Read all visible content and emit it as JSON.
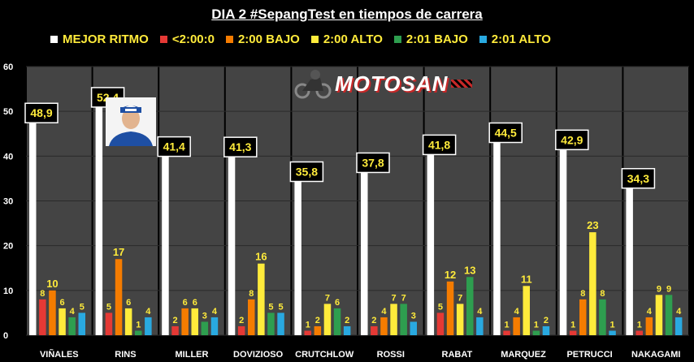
{
  "chart_data": {
    "type": "bar",
    "title": "DIA 2 #SepangTest en tiempos de carrera",
    "ylim": [
      0,
      60
    ],
    "yticks": [
      0,
      10,
      20,
      30,
      40,
      50,
      60
    ],
    "legend_placement": "top",
    "categories": [
      "VIÑALES",
      "RINS",
      "MILLER",
      "DOVIZIOSO",
      "CRUTCHLOW",
      "ROSSI",
      "RABAT",
      "MARQUEZ",
      "PETRUCCI",
      "NAKAGAMI"
    ],
    "series": [
      {
        "name": "MEJOR RITMO",
        "color": "#ffffff",
        "values": [
          48.9,
          52.4,
          41.4,
          41.3,
          35.8,
          37.8,
          41.8,
          44.5,
          42.9,
          34.3
        ],
        "labels": [
          "48,9",
          "52,4",
          "41,4",
          "41,3",
          "35,8",
          "37,8",
          "41,8",
          "44,5",
          "42,9",
          "34,3"
        ]
      },
      {
        "name": "<2:00:0",
        "color": "#e53935",
        "values": [
          8,
          5,
          2,
          2,
          1,
          2,
          5,
          1,
          1,
          1
        ]
      },
      {
        "name": "2:00 BAJO",
        "color": "#f57c00",
        "values": [
          10,
          17,
          6,
          8,
          2,
          4,
          12,
          4,
          8,
          4
        ]
      },
      {
        "name": "2:00 ALTO",
        "color": "#ffeb3b",
        "values": [
          6,
          6,
          6,
          16,
          7,
          7,
          7,
          11,
          23,
          9
        ]
      },
      {
        "name": "2:01 BAJO",
        "color": "#2e9e4f",
        "values": [
          4,
          1,
          3,
          5,
          6,
          7,
          13,
          1,
          8,
          9
        ]
      },
      {
        "name": "2:01 ALTO",
        "color": "#29a9e0",
        "values": [
          5,
          4,
          4,
          5,
          2,
          3,
          4,
          2,
          1,
          4
        ]
      }
    ]
  },
  "logo": {
    "text": "MOTOSAN"
  }
}
